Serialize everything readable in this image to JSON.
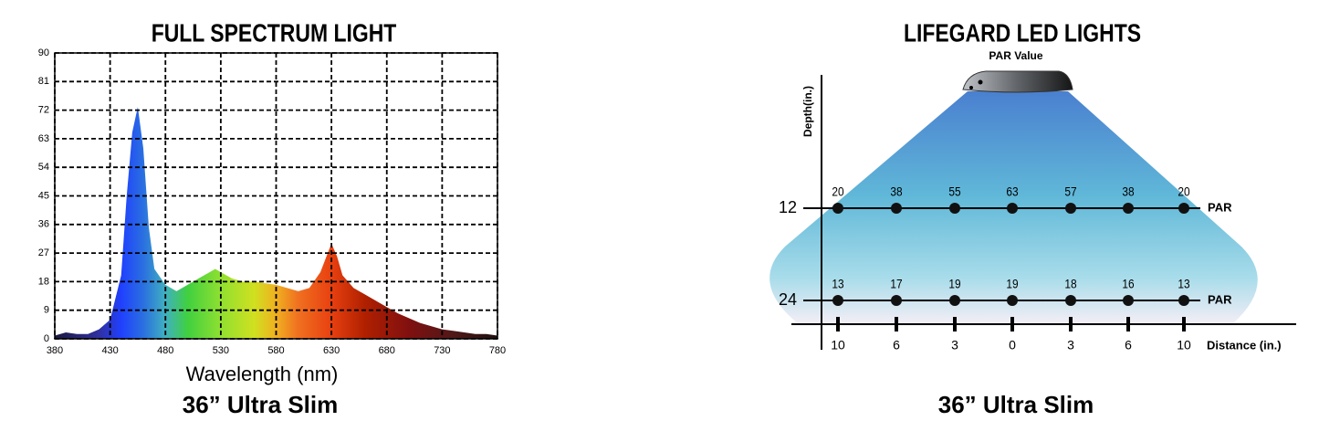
{
  "chart_data": [
    {
      "type": "area",
      "title": "FULL SPECTRUM LIGHT",
      "x_label": "Wavelength (nm)",
      "caption": "36”  Ultra Slim",
      "x": [
        380,
        390,
        400,
        410,
        420,
        430,
        440,
        445,
        450,
        455,
        460,
        465,
        470,
        480,
        490,
        500,
        510,
        520,
        525,
        530,
        540,
        550,
        560,
        570,
        580,
        590,
        600,
        610,
        620,
        630,
        635,
        640,
        650,
        660,
        670,
        680,
        690,
        700,
        710,
        720,
        730,
        740,
        750,
        760,
        770,
        780
      ],
      "values": [
        1,
        2,
        1.5,
        1.5,
        3,
        6,
        20,
        45,
        65,
        73,
        60,
        35,
        22,
        17,
        15,
        17,
        19,
        21,
        22,
        21,
        19,
        18,
        18,
        17.5,
        17,
        16,
        15,
        16,
        21,
        30,
        26,
        20,
        16,
        14,
        12,
        10,
        8,
        6.5,
        5,
        4,
        3,
        2.5,
        2,
        1.5,
        1.5,
        1
      ],
      "xlim": [
        380,
        780
      ],
      "xticks": [
        380,
        430,
        480,
        530,
        580,
        630,
        680,
        730,
        780
      ],
      "ylim": [
        0,
        90
      ],
      "yticks": [
        0,
        9,
        18,
        27,
        36,
        45,
        54,
        63,
        72,
        81,
        90
      ],
      "grid": true
    },
    {
      "type": "par",
      "title": "LIFEGARD LED LIGHTS",
      "subtitle": "PAR Value",
      "y_label": "Depth(in.)",
      "x_label": "Distance (in.)",
      "row_unit": "PAR",
      "caption": "36”  Ultra Slim",
      "categories": [
        "10",
        "6",
        "3",
        "0",
        "3",
        "6",
        "10"
      ],
      "rows": [
        {
          "label": 12,
          "values": [
            20,
            38,
            55,
            63,
            57,
            38,
            20
          ]
        },
        {
          "label": 24,
          "values": [
            13,
            17,
            19,
            19,
            18,
            16,
            13
          ]
        }
      ]
    }
  ]
}
